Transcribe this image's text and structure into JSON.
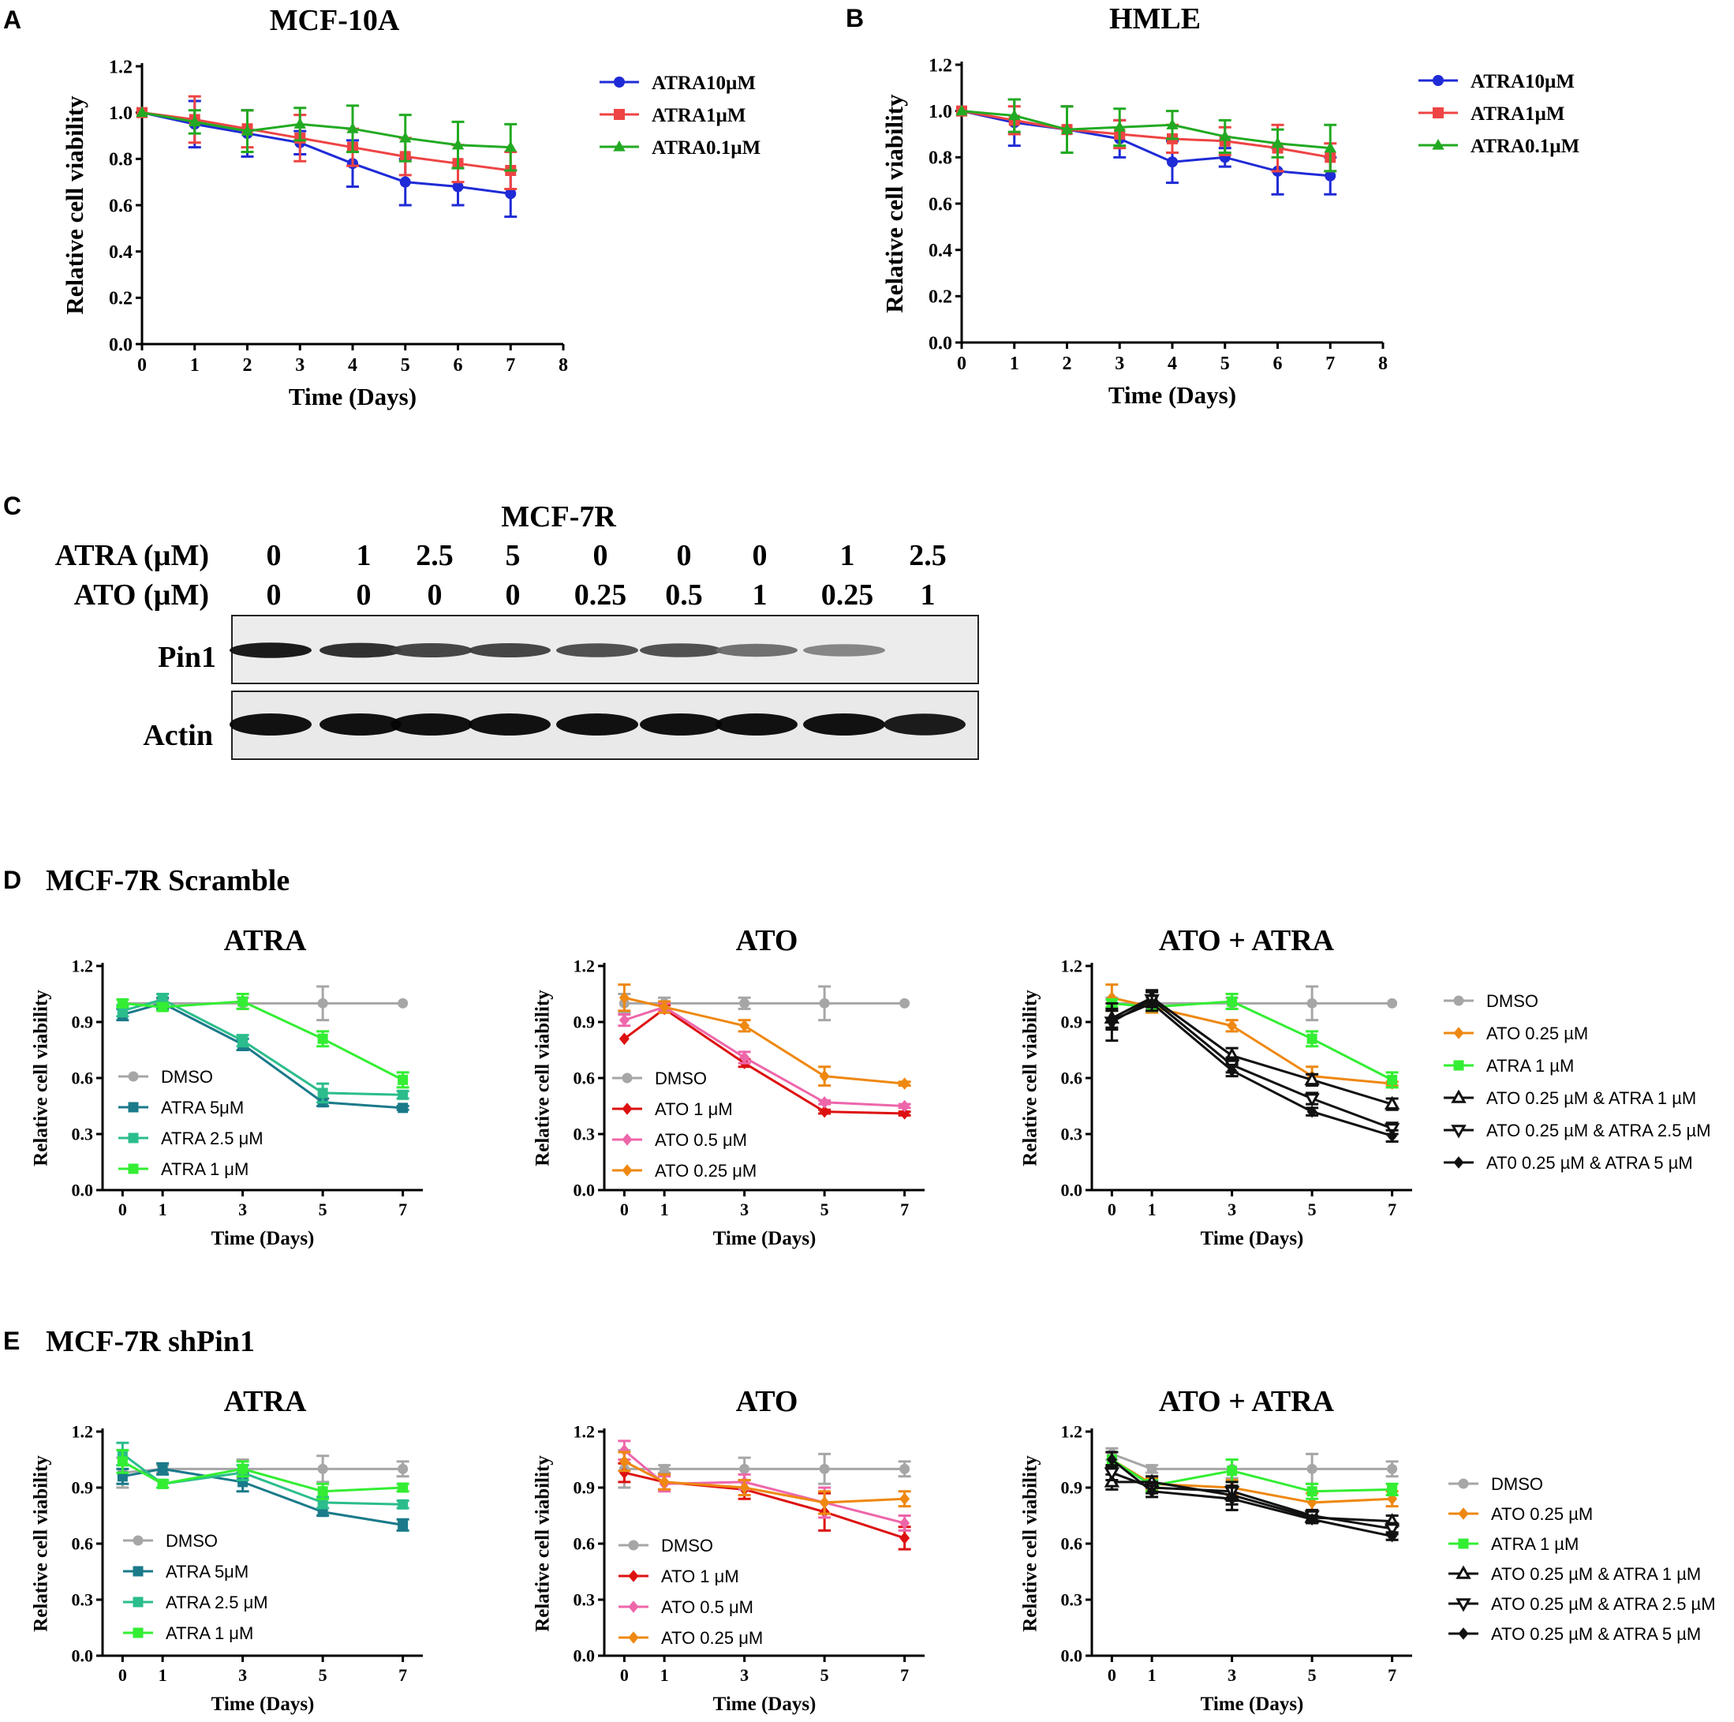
{
  "figure": {
    "panels": {
      "A": "A",
      "B": "B",
      "C": "C",
      "D": "D",
      "E": "E"
    },
    "group_titles": {
      "D": "MCF-7R Scramble",
      "E": "MCF-7R shPin1"
    }
  },
  "colors": {
    "blue": "#1f2bd6",
    "red": "#ee4444",
    "green": "#22aa22",
    "gray": "#a6a6a6",
    "teal": "#1a7a8a",
    "seagreen": "#2bbd8c",
    "lime": "#33ee33",
    "darkred": "#dd1111",
    "pink": "#ee66aa",
    "orange": "#ee8811",
    "black": "#111111"
  },
  "blot": {
    "title": "MCF-7R",
    "row1_label": "ATRA (µM)",
    "row2_label": "ATO (µM)",
    "atra_values": [
      "0",
      "1",
      "2.5",
      "5",
      "0",
      "0",
      "0",
      "1",
      "2.5"
    ],
    "ato_values": [
      "0",
      "0",
      "0",
      "0",
      "0.25",
      "0.5",
      "1",
      "0.25",
      "1"
    ],
    "bands": [
      {
        "label": "Pin1",
        "intensity": [
          0.95,
          0.85,
          0.75,
          0.75,
          0.7,
          0.7,
          0.55,
          0.45,
          0.0
        ]
      },
      {
        "label": "Actin",
        "intensity": [
          1.0,
          1.0,
          1.0,
          1.0,
          1.0,
          1.0,
          1.0,
          1.0,
          0.95
        ]
      }
    ]
  },
  "chart_data": [
    {
      "id": "A",
      "type": "line",
      "title": "MCF-10A",
      "xlabel": "Time (Days)",
      "ylabel": "Relative cell viability",
      "xlim": [
        0,
        8
      ],
      "ylim": [
        0,
        1.2
      ],
      "xticks": [
        0,
        1,
        2,
        3,
        4,
        5,
        6,
        7,
        8
      ],
      "yticks": [
        "0.0",
        "0.2",
        "0.4",
        "0.6",
        "0.8",
        "1.0",
        "1.2"
      ],
      "x": [
        0,
        1,
        2,
        3,
        4,
        5,
        6,
        7
      ],
      "series": [
        {
          "name": "ATRA10µM",
          "color": "blue",
          "marker": "circle",
          "values": [
            1.0,
            0.95,
            0.91,
            0.87,
            0.78,
            0.7,
            0.68,
            0.65
          ],
          "errors": [
            0,
            0.1,
            0.1,
            0.05,
            0.1,
            0.1,
            0.08,
            0.1
          ]
        },
        {
          "name": "ATRA1µM",
          "color": "red",
          "marker": "square",
          "values": [
            1.0,
            0.97,
            0.93,
            0.89,
            0.85,
            0.81,
            0.78,
            0.75
          ],
          "errors": [
            0,
            0.1,
            0.08,
            0.1,
            0.08,
            0.08,
            0.08,
            0.08
          ]
        },
        {
          "name": "ATRA0.1µM",
          "color": "green",
          "marker": "triangle",
          "values": [
            1.0,
            0.96,
            0.92,
            0.95,
            0.93,
            0.89,
            0.86,
            0.85
          ],
          "errors": [
            0,
            0.05,
            0.09,
            0.07,
            0.1,
            0.1,
            0.1,
            0.1
          ]
        }
      ],
      "legend_position": "top-right"
    },
    {
      "id": "B",
      "type": "line",
      "title": "HMLE",
      "xlabel": "Time (Days)",
      "ylabel": "Relative cell viability",
      "xlim": [
        0,
        8
      ],
      "ylim": [
        0,
        1.2
      ],
      "xticks": [
        0,
        1,
        2,
        3,
        4,
        5,
        6,
        7,
        8
      ],
      "yticks": [
        "0.0",
        "0.2",
        "0.4",
        "0.6",
        "0.8",
        "1.0",
        "1.2"
      ],
      "x": [
        0,
        1,
        2,
        3,
        4,
        5,
        6,
        7
      ],
      "series": [
        {
          "name": "ATRA10µM",
          "color": "blue",
          "marker": "circle",
          "values": [
            1.0,
            0.95,
            0.92,
            0.88,
            0.78,
            0.8,
            0.74,
            0.72
          ],
          "errors": [
            0,
            0.1,
            0.1,
            0.08,
            0.09,
            0.04,
            0.1,
            0.08
          ]
        },
        {
          "name": "ATRA1µM",
          "color": "red",
          "marker": "square",
          "values": [
            1.0,
            0.96,
            0.92,
            0.9,
            0.88,
            0.87,
            0.84,
            0.8
          ],
          "errors": [
            0,
            0.06,
            0.1,
            0.06,
            0.06,
            0.06,
            0.1,
            0.06
          ]
        },
        {
          "name": "ATRA0.1µM",
          "color": "green",
          "marker": "triangle",
          "values": [
            1.0,
            0.98,
            0.92,
            0.93,
            0.94,
            0.89,
            0.86,
            0.84
          ],
          "errors": [
            0,
            0.07,
            0.1,
            0.08,
            0.06,
            0.07,
            0.06,
            0.1
          ]
        }
      ],
      "legend_position": "top-right"
    },
    {
      "id": "D1",
      "type": "line",
      "group": "D",
      "title": "ATRA",
      "xlabel": "Time (Days)",
      "ylabel": "Relative cell viability",
      "xlim": [
        -0.5,
        7.5
      ],
      "ylim": [
        0,
        1.2
      ],
      "xticks": [
        0,
        1,
        3,
        5,
        7
      ],
      "yticks": [
        "0.0",
        "0.3",
        "0.6",
        "0.9",
        "1.2"
      ],
      "x": [
        0,
        1,
        3,
        5,
        7
      ],
      "series": [
        {
          "name": "DMSO",
          "color": "gray",
          "marker": "circle",
          "values": [
            1.0,
            1.0,
            1.0,
            1.0,
            1.0
          ],
          "errors": [
            0,
            0.02,
            0.03,
            0.09,
            0
          ]
        },
        {
          "name": "ATRA 5μM",
          "color": "teal",
          "marker": "square",
          "values": [
            0.94,
            1.0,
            0.78,
            0.47,
            0.44
          ],
          "errors": [
            0.03,
            0.03,
            0.03,
            0.02,
            0.01
          ]
        },
        {
          "name": "ATRA 2.5 μM",
          "color": "seagreen",
          "marker": "square",
          "values": [
            0.96,
            1.02,
            0.8,
            0.52,
            0.51
          ],
          "errors": [
            0.03,
            0.03,
            0.03,
            0.05,
            0.02
          ]
        },
        {
          "name": "ATRA 1 μM",
          "color": "lime",
          "marker": "square",
          "values": [
            1.0,
            0.98,
            1.01,
            0.81,
            0.59
          ],
          "errors": [
            0.02,
            0.02,
            0.04,
            0.04,
            0.04
          ]
        }
      ],
      "legend_position": "bottom-left"
    },
    {
      "id": "D2",
      "type": "line",
      "group": "D",
      "title": "ATO",
      "xlabel": "Time (Days)",
      "ylabel": "Relative cell viability",
      "xlim": [
        -0.5,
        7.5
      ],
      "ylim": [
        0,
        1.2
      ],
      "xticks": [
        0,
        1,
        3,
        5,
        7
      ],
      "yticks": [
        "0.0",
        "0.3",
        "0.6",
        "0.9",
        "1.2"
      ],
      "x": [
        0,
        1,
        3,
        5,
        7
      ],
      "series": [
        {
          "name": "DMSO",
          "color": "gray",
          "marker": "circle",
          "values": [
            1.0,
            1.0,
            1.0,
            1.0,
            1.0
          ],
          "errors": [
            0.05,
            0.03,
            0.03,
            0.09,
            0
          ]
        },
        {
          "name": "ATO 1 μM",
          "color": "darkred",
          "marker": "diamond",
          "values": [
            0.81,
            0.97,
            0.68,
            0.42,
            0.41
          ],
          "errors": [
            0,
            0.02,
            0.02,
            0.01,
            0.01
          ]
        },
        {
          "name": "ATO 0.5 μM",
          "color": "pink",
          "marker": "diamond",
          "values": [
            0.91,
            0.98,
            0.71,
            0.47,
            0.45
          ],
          "errors": [
            0.03,
            0.02,
            0.03,
            0.01,
            0.01
          ]
        },
        {
          "name": "ATO 0.25 μM",
          "color": "orange",
          "marker": "diamond",
          "values": [
            1.03,
            0.98,
            0.88,
            0.61,
            0.57
          ],
          "errors": [
            0.07,
            0.03,
            0.03,
            0.05,
            0.01
          ]
        }
      ],
      "legend_position": "bottom-left"
    },
    {
      "id": "D3",
      "type": "line",
      "group": "D",
      "title": "ATO + ATRA",
      "xlabel": "Time (Days)",
      "ylabel": "Relative cell viability",
      "xlim": [
        -0.5,
        7.5
      ],
      "ylim": [
        0,
        1.2
      ],
      "xticks": [
        0,
        1,
        3,
        5,
        7
      ],
      "yticks": [
        "0.0",
        "0.3",
        "0.6",
        "0.9",
        "1.2"
      ],
      "x": [
        0,
        1,
        3,
        5,
        7
      ],
      "series": [
        {
          "name": "DMSO",
          "color": "gray",
          "marker": "circle",
          "values": [
            1.0,
            1.0,
            1.0,
            1.0,
            1.0
          ],
          "errors": [
            0.03,
            0.03,
            0.03,
            0.09,
            0
          ]
        },
        {
          "name": "ATO 0.25 µM",
          "color": "orange",
          "marker": "diamond",
          "values": [
            1.03,
            0.98,
            0.88,
            0.61,
            0.57
          ],
          "errors": [
            0.07,
            0.03,
            0.03,
            0.05,
            0.01
          ]
        },
        {
          "name": "ATRA 1 µM",
          "color": "lime",
          "marker": "square",
          "values": [
            1.0,
            0.98,
            1.01,
            0.81,
            0.59
          ],
          "errors": [
            0.02,
            0.02,
            0.04,
            0.04,
            0.04
          ]
        },
        {
          "name": "ATO 0.25 µM & ATRA 1 µM",
          "color": "black",
          "marker": "triangle-open",
          "values": [
            0.92,
            1.03,
            0.72,
            0.59,
            0.46
          ],
          "errors": [
            0.05,
            0.04,
            0.04,
            0.03,
            0.03
          ]
        },
        {
          "name": "ATO 0.25 µM & ATRA 2.5 µM",
          "color": "black",
          "marker": "triangle-down-open",
          "values": [
            0.9,
            1.02,
            0.67,
            0.49,
            0.33
          ],
          "errors": [
            0.1,
            0.04,
            0.04,
            0.03,
            0.03
          ]
        },
        {
          "name": "AT0 0.25 µM & ATRA 5 µM",
          "color": "black",
          "marker": "diamond",
          "values": [
            0.91,
            1.0,
            0.64,
            0.42,
            0.29
          ],
          "errors": [
            0.05,
            0.04,
            0.03,
            0.02,
            0.03
          ]
        }
      ],
      "legend_position": "right"
    },
    {
      "id": "E1",
      "type": "line",
      "group": "E",
      "title": "ATRA",
      "xlabel": "Time (Days)",
      "ylabel": "Relative cell viability",
      "xlim": [
        -0.5,
        7.5
      ],
      "ylim": [
        0,
        1.2
      ],
      "xticks": [
        0,
        1,
        3,
        5,
        7
      ],
      "yticks": [
        "0.0",
        "0.3",
        "0.6",
        "0.9",
        "1.2"
      ],
      "x": [
        0,
        1,
        3,
        5,
        7
      ],
      "series": [
        {
          "name": "DMSO",
          "color": "gray",
          "marker": "circle",
          "values": [
            0.98,
            1.0,
            1.0,
            1.0,
            1.0
          ],
          "errors": [
            0.08,
            0.02,
            0.05,
            0.07,
            0.04
          ]
        },
        {
          "name": "ATRA 5μM",
          "color": "teal",
          "marker": "square",
          "values": [
            0.96,
            1.0,
            0.93,
            0.77,
            0.7
          ],
          "errors": [
            0.04,
            0.03,
            0.05,
            0.02,
            0.03
          ]
        },
        {
          "name": "ATRA 2.5 μM",
          "color": "seagreen",
          "marker": "square",
          "values": [
            1.08,
            0.92,
            0.98,
            0.82,
            0.81
          ],
          "errors": [
            0.06,
            0.02,
            0.04,
            0.03,
            0.02
          ]
        },
        {
          "name": "ATRA 1 μM",
          "color": "lime",
          "marker": "square",
          "values": [
            1.04,
            0.92,
            1.0,
            0.88,
            0.9
          ],
          "errors": [
            0.06,
            0.02,
            0.04,
            0.04,
            0.02
          ]
        }
      ],
      "legend_position": "bottom-left"
    },
    {
      "id": "E2",
      "type": "line",
      "group": "E",
      "title": "ATO",
      "xlabel": "Time (Days)",
      "ylabel": "Relative cell viability",
      "xlim": [
        -0.5,
        7.5
      ],
      "ylim": [
        0,
        1.2
      ],
      "xticks": [
        0,
        1,
        3,
        5,
        7
      ],
      "yticks": [
        "0.0",
        "0.3",
        "0.6",
        "0.9",
        "1.2"
      ],
      "x": [
        0,
        1,
        3,
        5,
        7
      ],
      "series": [
        {
          "name": "DMSO",
          "color": "gray",
          "marker": "circle",
          "values": [
            1.0,
            1.0,
            1.0,
            1.0,
            1.0
          ],
          "errors": [
            0.1,
            0.02,
            0.06,
            0.08,
            0.04
          ]
        },
        {
          "name": "ATO 1 μM",
          "color": "darkred",
          "marker": "diamond",
          "values": [
            0.98,
            0.93,
            0.89,
            0.77,
            0.63
          ],
          "errors": [
            0.05,
            0.04,
            0.05,
            0.1,
            0.06
          ]
        },
        {
          "name": "ATO 0.5 μM",
          "color": "pink",
          "marker": "diamond",
          "values": [
            1.1,
            0.92,
            0.93,
            0.82,
            0.71
          ],
          "errors": [
            0.05,
            0.04,
            0.04,
            0.08,
            0.04
          ]
        },
        {
          "name": "ATO 0.25 μM",
          "color": "orange",
          "marker": "diamond",
          "values": [
            1.04,
            0.93,
            0.9,
            0.82,
            0.84
          ],
          "errors": [
            0.05,
            0.04,
            0.04,
            0.06,
            0.04
          ]
        }
      ],
      "legend_position": "bottom-left"
    },
    {
      "id": "E3",
      "type": "line",
      "group": "E",
      "title": "ATO + ATRA",
      "xlabel": "Time (Days)",
      "ylabel": "Relative cell viability",
      "xlim": [
        -0.5,
        7.5
      ],
      "ylim": [
        0,
        1.2
      ],
      "xticks": [
        0,
        1,
        3,
        5,
        7
      ],
      "yticks": [
        "0.0",
        "0.3",
        "0.6",
        "0.9",
        "1.2"
      ],
      "x": [
        0,
        1,
        3,
        5,
        7
      ],
      "series": [
        {
          "name": "DMSO",
          "color": "gray",
          "marker": "circle",
          "values": [
            1.08,
            1.0,
            1.0,
            1.0,
            1.0
          ],
          "errors": [
            0.03,
            0.02,
            0.05,
            0.08,
            0.04
          ]
        },
        {
          "name": "ATO 0.25 µM",
          "color": "orange",
          "marker": "diamond",
          "values": [
            1.05,
            0.92,
            0.9,
            0.82,
            0.84
          ],
          "errors": [
            0.04,
            0.03,
            0.04,
            0.05,
            0.04
          ]
        },
        {
          "name": "ATRA 1 µM",
          "color": "lime",
          "marker": "square",
          "values": [
            1.05,
            0.91,
            0.99,
            0.88,
            0.89
          ],
          "errors": [
            0.04,
            0.03,
            0.06,
            0.04,
            0.03
          ]
        },
        {
          "name": "ATO 0.25 µM & ATRA 1 µM",
          "color": "black",
          "marker": "triangle-open",
          "values": [
            0.93,
            0.93,
            0.86,
            0.74,
            0.72
          ],
          "errors": [
            0.04,
            0.03,
            0.05,
            0.03,
            0.03
          ]
        },
        {
          "name": "ATO 0.25 µM & ATRA 2.5 µM",
          "color": "black",
          "marker": "triangle-down-open",
          "values": [
            0.98,
            0.9,
            0.88,
            0.75,
            0.68
          ],
          "errors": [
            0.04,
            0.03,
            0.05,
            0.03,
            0.03
          ]
        },
        {
          "name": "ATO 0.25 µM & ATRA 5 µM",
          "color": "black",
          "marker": "diamond",
          "values": [
            1.05,
            0.88,
            0.84,
            0.73,
            0.64
          ],
          "errors": [
            0.04,
            0.03,
            0.06,
            0.02,
            0.02
          ]
        }
      ],
      "legend_position": "right"
    }
  ]
}
